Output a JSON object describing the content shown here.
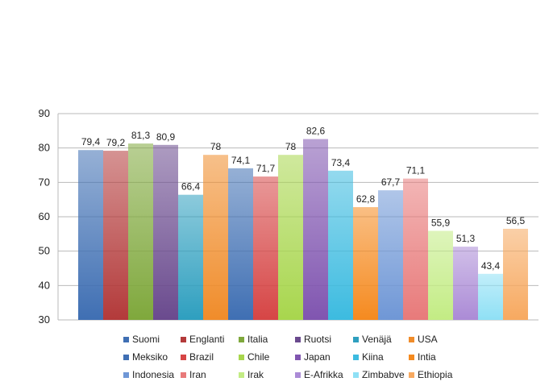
{
  "chart_data": {
    "type": "bar",
    "categories": [
      "Suomi",
      "Englanti",
      "Italia",
      "Ruotsi",
      "Venäjä",
      "USA",
      "Meksiko",
      "Brazil",
      "Chile",
      "Japan",
      "Kiina",
      "Intia",
      "Indonesia",
      "Iran",
      "Irak",
      "E-Afrikka",
      "Zimbabve",
      "Ethiopia"
    ],
    "values": [
      79.4,
      79.2,
      81.3,
      80.9,
      66.4,
      78,
      74.1,
      71.7,
      78,
      82.6,
      73.4,
      62.8,
      67.7,
      71.1,
      55.9,
      51.3,
      43.4,
      56.5
    ],
    "value_labels": [
      "79,4",
      "79,2",
      "81,3",
      "80,9",
      "66,4",
      "78",
      "74,1",
      "71,7",
      "78",
      "82,6",
      "73,4",
      "62,8",
      "67,7",
      "71,1",
      "55,9",
      "51,3",
      "43,4",
      "56,5"
    ],
    "colors": [
      "#3f6fb3",
      "#b33a3a",
      "#7fa83c",
      "#6a4a8e",
      "#2e9fbf",
      "#f08c2a",
      "#3f6fb3",
      "#d64545",
      "#a8d64d",
      "#8055b0",
      "#3cbbe0",
      "#f58a1f",
      "#6f97d6",
      "#e87a7a",
      "#c3ec84",
      "#ab8bd6",
      "#8fe0f5",
      "#f7a960"
    ],
    "title": "",
    "xlabel": "",
    "ylabel": "",
    "ylim": [
      30,
      90
    ],
    "y_ticks": [
      30,
      40,
      50,
      60,
      70,
      80,
      90
    ],
    "grid": true,
    "legend_position": "bottom"
  }
}
